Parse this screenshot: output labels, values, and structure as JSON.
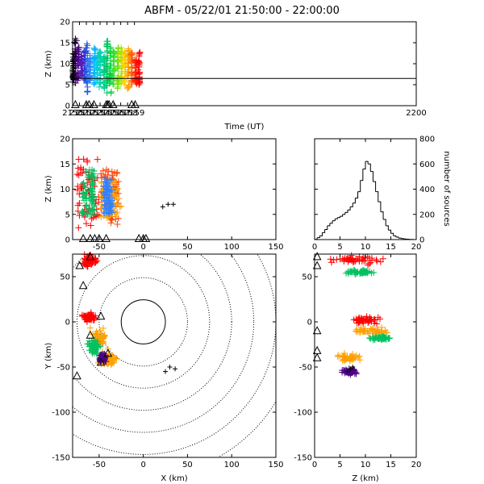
{
  "title": "ABFM - 05/22/01 21:50:00 - 22:00:00",
  "chart_data": [
    {
      "type": "scatter",
      "panel": "time-height",
      "xlabel": "Time (UT)",
      "ylabel": "Z (km)",
      "xlim": [
        2150,
        2200
      ],
      "ylim": [
        0,
        20
      ],
      "xticks": [
        "2150",
        "2151",
        "2152",
        "2153",
        "2154",
        "2155",
        "2156",
        "2157",
        "2158",
        "2159",
        "2200"
      ],
      "yticks": [
        "0",
        "5",
        "10",
        "15",
        "20"
      ],
      "reference_line_z": 6.5,
      "clusters": [
        {
          "t": 2150.1,
          "z_min": 5,
          "z_max": 13,
          "color": "#000000"
        },
        {
          "t": 2150.4,
          "z_min": 5,
          "z_max": 16,
          "color": "#1a0033"
        },
        {
          "t": 2150.8,
          "z_min": 6,
          "z_max": 14,
          "color": "#4b0082"
        },
        {
          "t": 2151.3,
          "z_min": 7,
          "z_max": 12,
          "color": "#5a1ab8"
        },
        {
          "t": 2151.8,
          "z_min": 6,
          "z_max": 14,
          "color": "#3030d0"
        },
        {
          "t": 2152.1,
          "z_min": 3,
          "z_max": 15,
          "color": "#2060e0"
        },
        {
          "t": 2152.5,
          "z_min": 6,
          "z_max": 12,
          "color": "#3080ff"
        },
        {
          "t": 2153.2,
          "z_min": 5,
          "z_max": 14,
          "color": "#00b0ff"
        },
        {
          "t": 2153.6,
          "z_min": 6,
          "z_max": 13,
          "color": "#00d0e0"
        },
        {
          "t": 2154.0,
          "z_min": 4,
          "z_max": 13,
          "color": "#00d0b0"
        },
        {
          "t": 2154.6,
          "z_min": 4,
          "z_max": 12,
          "color": "#00d090"
        },
        {
          "t": 2155.0,
          "z_min": 3,
          "z_max": 17,
          "color": "#00c060"
        },
        {
          "t": 2155.5,
          "z_min": 3,
          "z_max": 14,
          "color": "#00d040"
        },
        {
          "t": 2156.0,
          "z_min": 5,
          "z_max": 13,
          "color": "#30e030"
        },
        {
          "t": 2156.6,
          "z_min": 4,
          "z_max": 14,
          "color": "#70e000"
        },
        {
          "t": 2157.1,
          "z_min": 5,
          "z_max": 14,
          "color": "#b0e000"
        },
        {
          "t": 2157.6,
          "z_min": 5,
          "z_max": 13,
          "color": "#ffd000"
        },
        {
          "t": 2158.1,
          "z_min": 4,
          "z_max": 14,
          "color": "#ffa000"
        },
        {
          "t": 2158.6,
          "z_min": 5,
          "z_max": 13,
          "color": "#ff6000"
        },
        {
          "t": 2159.2,
          "z_min": 5,
          "z_max": 12,
          "color": "#ff2000"
        },
        {
          "t": 2159.7,
          "z_min": 4,
          "z_max": 13,
          "color": "#ff0000"
        }
      ],
      "triangle_times": [
        2150.4,
        2152.0,
        2152.4,
        2153.1,
        2154.9,
        2155.1,
        2155.3,
        2155.9,
        2158.6,
        2159.1
      ]
    },
    {
      "type": "scatter",
      "panel": "x-z",
      "xlabel": "",
      "ylabel": "Z (km)",
      "xlim": [
        -80,
        150
      ],
      "ylim": [
        0,
        20
      ],
      "xticks": [
        "-50",
        "0",
        "50",
        "100",
        "150"
      ],
      "yticks": [
        "0",
        "5",
        "10",
        "15",
        "20"
      ],
      "clusters": [
        {
          "x_min": -75,
          "x_max": -50,
          "z_min": 2,
          "z_max": 16,
          "color": "#ff0000"
        },
        {
          "x_min": -48,
          "x_max": -28,
          "z_min": 3,
          "z_max": 14,
          "color": "#ff4000"
        },
        {
          "x_min": -48,
          "x_max": -25,
          "z_min": 4,
          "z_max": 12,
          "color": "#ffa000"
        },
        {
          "x_min": -70,
          "x_max": -55,
          "z_min": 5,
          "z_max": 14,
          "color": "#00c060"
        },
        {
          "x_min": -45,
          "x_max": -35,
          "z_min": 5,
          "z_max": 12,
          "color": "#3080ff"
        }
      ],
      "triangle_x": [
        -68,
        -60,
        -55,
        -50,
        -42,
        -5,
        0,
        3
      ],
      "flash_cluster": {
        "x": [
          22,
          28,
          34
        ],
        "z": [
          6.5,
          7,
          7
        ]
      }
    },
    {
      "type": "bar",
      "panel": "histogram",
      "xlabel": "",
      "ylabel": "number of sources",
      "xlim": [
        0,
        20
      ],
      "ylim": [
        0,
        800
      ],
      "xticks": [
        "0",
        "5",
        "10",
        "15",
        "20"
      ],
      "yticks": [
        "0",
        "200",
        "400",
        "600",
        "800"
      ],
      "bin_centers": [
        0.25,
        0.75,
        1.25,
        1.75,
        2.25,
        2.75,
        3.25,
        3.75,
        4.25,
        4.75,
        5.25,
        5.75,
        6.25,
        6.75,
        7.25,
        7.75,
        8.25,
        8.75,
        9.25,
        9.75,
        10.25,
        10.75,
        11.25,
        11.75,
        12.25,
        12.75,
        13.25,
        13.75,
        14.25,
        14.75,
        15.25,
        15.75,
        16.25,
        16.75,
        17.25,
        17.75,
        18.25,
        18.75,
        19.25,
        19.75
      ],
      "values": [
        2,
        15,
        30,
        55,
        80,
        110,
        130,
        150,
        165,
        175,
        185,
        200,
        215,
        235,
        260,
        290,
        330,
        380,
        470,
        560,
        620,
        600,
        540,
        460,
        380,
        300,
        220,
        160,
        110,
        75,
        50,
        30,
        20,
        12,
        8,
        5,
        3,
        2,
        1,
        0
      ]
    },
    {
      "type": "scatter",
      "panel": "x-y",
      "xlabel": "X (km)",
      "ylabel": "Y (km)",
      "xlim": [
        -80,
        150
      ],
      "ylim": [
        -150,
        75
      ],
      "xticks": [
        "-50",
        "0",
        "50",
        "100",
        "150"
      ],
      "yticks": [
        "-150",
        "-100",
        "-50",
        "0",
        "50"
      ],
      "range_rings_km": [
        25,
        50,
        75,
        100,
        125,
        150,
        175
      ],
      "clusters": [
        {
          "x": -60,
          "y": 68,
          "rx": 12,
          "ry": 8,
          "color": "#ff0000"
        },
        {
          "x": -62,
          "y": 5,
          "rx": 10,
          "ry": 6,
          "color": "#ff0000"
        },
        {
          "x": -50,
          "y": -20,
          "rx": 14,
          "ry": 16,
          "color": "#ffa000"
        },
        {
          "x": -40,
          "y": -42,
          "rx": 14,
          "ry": 10,
          "color": "#ffa000"
        },
        {
          "x": -56,
          "y": -28,
          "rx": 8,
          "ry": 10,
          "color": "#00c060"
        },
        {
          "x": -46,
          "y": -40,
          "rx": 6,
          "ry": 6,
          "color": "#4b0082"
        }
      ],
      "triangles": [
        [
          -72,
          62
        ],
        [
          -60,
          72
        ],
        [
          -68,
          40
        ],
        [
          -48,
          6
        ],
        [
          -60,
          -15
        ],
        [
          -48,
          -45
        ],
        [
          -40,
          -35
        ],
        [
          -75,
          -60
        ]
      ],
      "flash_cluster": {
        "x": [
          25,
          30,
          36
        ],
        "y": [
          -55,
          -50,
          -52
        ]
      }
    },
    {
      "type": "scatter",
      "panel": "z-y",
      "xlabel": "Z (km)",
      "ylabel": "",
      "xlim": [
        0,
        20
      ],
      "ylim": [
        -150,
        75
      ],
      "xticks": [
        "0",
        "5",
        "10",
        "15",
        "20"
      ],
      "yticks": [
        "-150",
        "-100",
        "-50",
        "0",
        "50"
      ],
      "clusters": [
        {
          "z": 8,
          "y": 68,
          "rz": 7,
          "ry": 7,
          "color": "#ff0000"
        },
        {
          "z": 9,
          "y": 55,
          "rz": 4,
          "ry": 3,
          "color": "#00c060"
        },
        {
          "z": 10,
          "y": 2,
          "rz": 4,
          "ry": 6,
          "color": "#ff0000"
        },
        {
          "z": 11,
          "y": -10,
          "rz": 5,
          "ry": 6,
          "color": "#ffa000"
        },
        {
          "z": 13,
          "y": -18,
          "rz": 3,
          "ry": 3,
          "color": "#00c060"
        },
        {
          "z": 7,
          "y": -40,
          "rz": 3,
          "ry": 6,
          "color": "#ffa000"
        },
        {
          "z": 7,
          "y": -55,
          "rz": 2,
          "ry": 4,
          "color": "#4b0082"
        }
      ],
      "triangles": [
        [
          0.5,
          72
        ],
        [
          0.5,
          62
        ],
        [
          0.5,
          -10
        ],
        [
          0.5,
          -32
        ],
        [
          0.5,
          -40
        ]
      ],
      "flash_cluster": {
        "z": [
          6.5,
          7,
          7.5
        ],
        "y": [
          -55,
          -52,
          -50
        ]
      }
    }
  ]
}
